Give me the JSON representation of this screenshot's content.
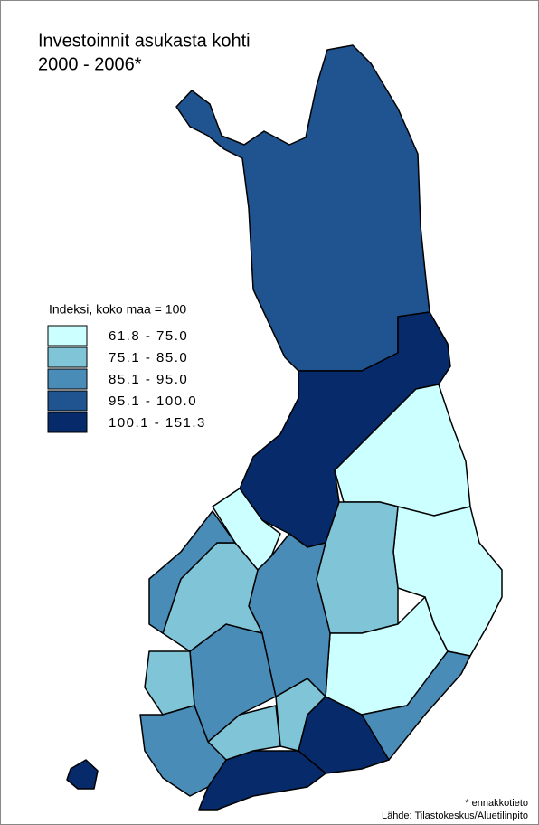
{
  "title": [
    "Investoinnit asukasta kohti",
    "2000 - 2006*"
  ],
  "legend": {
    "title": "Indeksi, koko maa = 100",
    "classes": [
      {
        "label": "61.8 - 75.0",
        "color": "#ccffff"
      },
      {
        "label": "75.1 - 85.0",
        "color": "#80c4d8"
      },
      {
        "label": "85.1 - 95.0",
        "color": "#4a8cb8"
      },
      {
        "label": "95.1 - 100.0",
        "color": "#205490"
      },
      {
        "label": "100.1 - 151.3",
        "color": "#062a6a"
      }
    ]
  },
  "footnote": "* ennakkotieto",
  "source": "Lähde: Tilastokeskus/Aluetilinpito"
}
